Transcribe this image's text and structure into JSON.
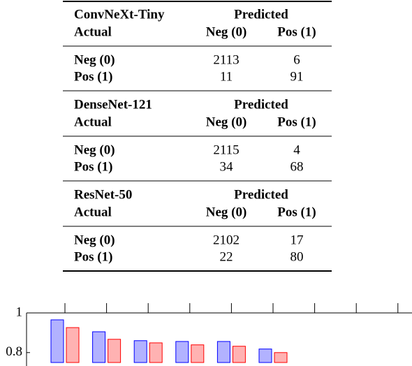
{
  "table": {
    "sections": [
      {
        "model": "ConvNeXt-Tiny",
        "predicted": "Predicted",
        "actual": "Actual",
        "columns": [
          "Neg (0)",
          "Pos (1)"
        ],
        "rows": [
          {
            "label": "Neg (0)",
            "cells": [
              2113,
              6
            ]
          },
          {
            "label": "Pos (1)",
            "cells": [
              11,
              91
            ]
          }
        ]
      },
      {
        "model": "DenseNet-121",
        "predicted": "Predicted",
        "actual": "Actual",
        "columns": [
          "Neg (0)",
          "Pos (1)"
        ],
        "rows": [
          {
            "label": "Neg (0)",
            "cells": [
              2115,
              4
            ]
          },
          {
            "label": "Pos (1)",
            "cells": [
              34,
              68
            ]
          }
        ]
      },
      {
        "model": "ResNet-50",
        "predicted": "Predicted",
        "actual": "Actual",
        "columns": [
          "Neg (0)",
          "Pos (1)"
        ],
        "rows": [
          {
            "label": "Neg (0)",
            "cells": [
              2102,
              17
            ]
          },
          {
            "label": "Pos (1)",
            "cells": [
              22,
              80
            ]
          }
        ]
      }
    ]
  },
  "chart_data": {
    "type": "bar",
    "categories": [
      null,
      null,
      null,
      null,
      null,
      null,
      null,
      null,
      null
    ],
    "series": [
      {
        "color": "#0000ff",
        "values": [
          0.965,
          0.905,
          0.86,
          0.856,
          0.856,
          0.818,
          null,
          null,
          null
        ]
      },
      {
        "color": "#ff0000",
        "values": [
          0.926,
          0.867,
          0.849,
          0.839,
          0.832,
          0.8,
          null,
          null,
          null
        ]
      }
    ],
    "ylim": [
      0.75,
      1
    ],
    "yticks": [
      0.8,
      1
    ]
  }
}
